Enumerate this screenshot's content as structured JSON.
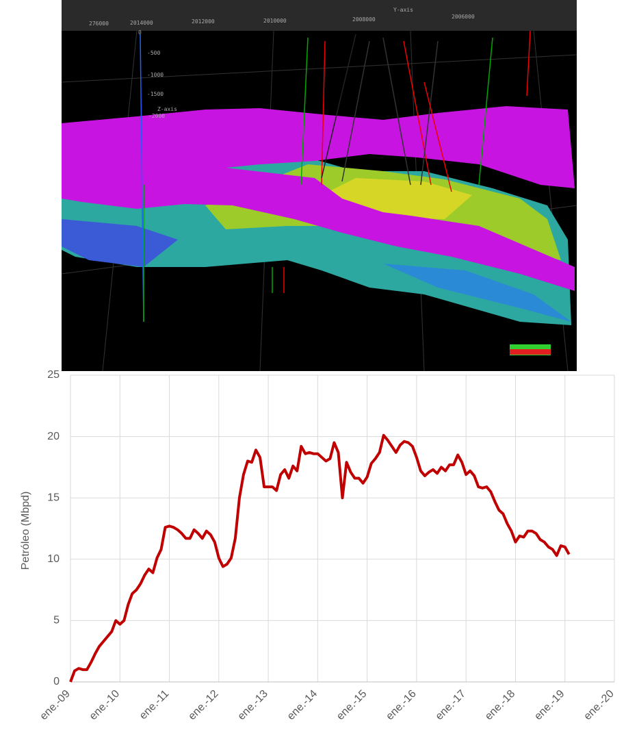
{
  "render_labels": [
    "Y-axis",
    "276000",
    "2014000",
    "2012000",
    "2010000",
    "2008000",
    "2006000",
    "Z-axis",
    "0",
    "-500",
    "-1000",
    "-1500",
    "-2000"
  ],
  "chart_data": {
    "type": "line",
    "y_label": "Petróleo (Mbpd)",
    "categories": [
      "ene.-09",
      null,
      null,
      null,
      null,
      null,
      null,
      null,
      null,
      null,
      null,
      null,
      "ene.-10",
      null,
      null,
      null,
      null,
      null,
      null,
      null,
      null,
      null,
      null,
      null,
      "ene.-11",
      null,
      null,
      null,
      null,
      null,
      null,
      null,
      null,
      null,
      null,
      null,
      "ene.-12",
      null,
      null,
      null,
      null,
      null,
      null,
      null,
      null,
      null,
      null,
      null,
      "ene.-13",
      null,
      null,
      null,
      null,
      null,
      null,
      null,
      null,
      null,
      null,
      null,
      "ene.-14",
      null,
      null,
      null,
      null,
      null,
      null,
      null,
      null,
      null,
      null,
      null,
      "ene.-15",
      null,
      null,
      null,
      null,
      null,
      null,
      null,
      null,
      null,
      null,
      null,
      "ene.-16",
      null,
      null,
      null,
      null,
      null,
      null,
      null,
      null,
      null,
      null,
      null,
      "ene.-17",
      null,
      null,
      null,
      null,
      null,
      null,
      null,
      null,
      null,
      null,
      null,
      "ene.-18",
      null,
      null,
      null,
      null,
      null,
      null,
      null,
      null,
      null,
      null,
      null,
      "ene.-19",
      null,
      null,
      null,
      null,
      null,
      null,
      null,
      null,
      null,
      null,
      null,
      "ene.-20"
    ],
    "values": [
      0,
      0.9,
      1.1,
      1.0,
      1.0,
      1.6,
      2.3,
      2.9,
      3.3,
      3.7,
      4.1,
      5.0,
      4.7,
      5.0,
      6.3,
      7.2,
      7.5,
      8.0,
      8.7,
      9.2,
      8.9,
      10.1,
      10.8,
      12.6,
      12.7,
      12.6,
      12.4,
      12.1,
      11.7,
      11.7,
      12.4,
      12.1,
      11.7,
      12.3,
      12.0,
      11.4,
      10.1,
      9.4,
      9.6,
      10.1,
      11.7,
      15.0,
      16.9,
      18.0,
      17.9,
      18.9,
      18.3,
      15.9,
      15.9,
      15.9,
      15.6,
      16.9,
      17.3,
      16.6,
      17.6,
      17.2,
      19.2,
      18.6,
      18.7,
      18.6,
      18.6,
      18.3,
      18.0,
      18.2,
      19.5,
      18.7,
      15.0,
      17.9,
      17.1,
      16.6,
      16.6,
      16.2,
      16.7,
      17.8,
      18.2,
      18.7,
      20.1,
      19.7,
      19.2,
      18.7,
      19.3,
      19.6,
      19.5,
      19.2,
      18.3,
      17.2,
      16.8,
      17.1,
      17.3,
      17.0,
      17.5,
      17.2,
      17.7,
      17.7,
      18.5,
      17.9,
      16.9,
      17.2,
      16.8,
      15.9,
      15.8,
      15.9,
      15.5,
      14.7,
      14.0,
      13.7,
      12.9,
      12.3,
      11.4,
      11.9,
      11.8,
      12.3,
      12.3,
      12.1,
      11.6,
      11.4,
      11.0,
      10.8,
      10.3,
      11.1,
      11.0,
      10.4,
      null,
      null,
      null,
      null,
      null,
      null,
      null,
      null,
      null,
      null,
      null
    ],
    "color": "#c00000",
    "ylim": [
      0,
      25
    ],
    "yticks": [
      0,
      5,
      10,
      15,
      20,
      25
    ],
    "grid": true
  }
}
